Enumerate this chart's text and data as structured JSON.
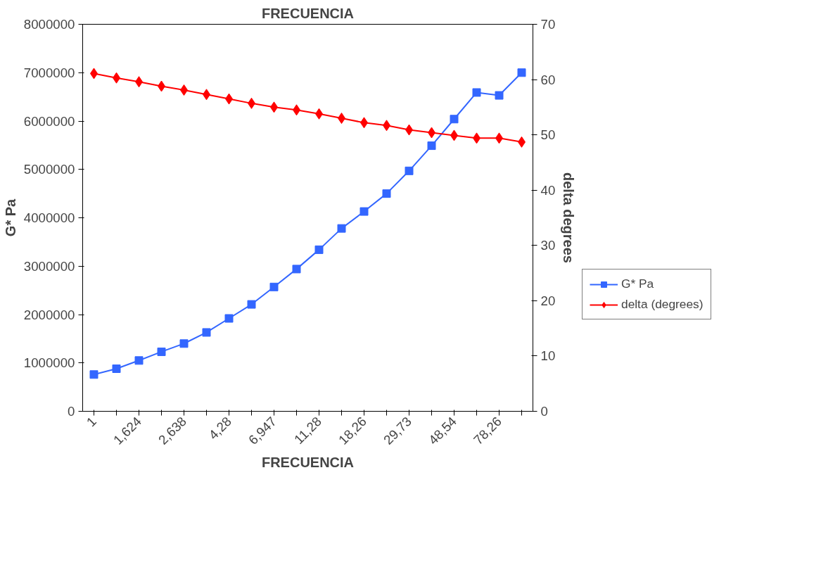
{
  "chart_data": {
    "type": "line",
    "title": "FRECUENCIA",
    "xlabel": "FRECUENCIA",
    "ylabel": "G* Pa",
    "y2label": "delta degrees",
    "categories": [
      "1",
      null,
      "1,624",
      null,
      "2,638",
      null,
      "4,28",
      null,
      "6,947",
      null,
      "11,28",
      null,
      "18,26",
      null,
      "29,73",
      null,
      "48,54",
      null,
      "78,26",
      null
    ],
    "series": [
      {
        "name": "G* Pa",
        "color": "#3366ff",
        "marker": "square",
        "values": [
          760000,
          880000,
          1050000,
          1230000,
          1400000,
          1630000,
          1920000,
          2210000,
          2570000,
          2940000,
          3340000,
          3780000,
          4130000,
          4500000,
          4970000,
          5490000,
          6040000,
          6590000,
          6530000,
          7000000
        ]
      },
      {
        "name": "delta (degrees)",
        "color": "#ff0000",
        "marker": "diamond",
        "axis": "y2",
        "values": [
          61.1,
          60.3,
          59.6,
          58.8,
          58.1,
          57.3,
          56.5,
          55.7,
          55.0,
          54.5,
          53.8,
          53.0,
          52.2,
          51.7,
          50.9,
          50.4,
          49.9,
          49.4,
          49.4,
          48.7
        ]
      }
    ],
    "ylim": [
      0,
      8000000
    ],
    "yticks": [
      0,
      1000000,
      2000000,
      3000000,
      4000000,
      5000000,
      6000000,
      7000000,
      8000000
    ],
    "y2lim": [
      0,
      70
    ],
    "y2ticks": [
      0,
      10,
      20,
      30,
      40,
      50,
      60,
      70
    ],
    "grid": false,
    "legend": "bottom right",
    "line_style": "solid"
  }
}
